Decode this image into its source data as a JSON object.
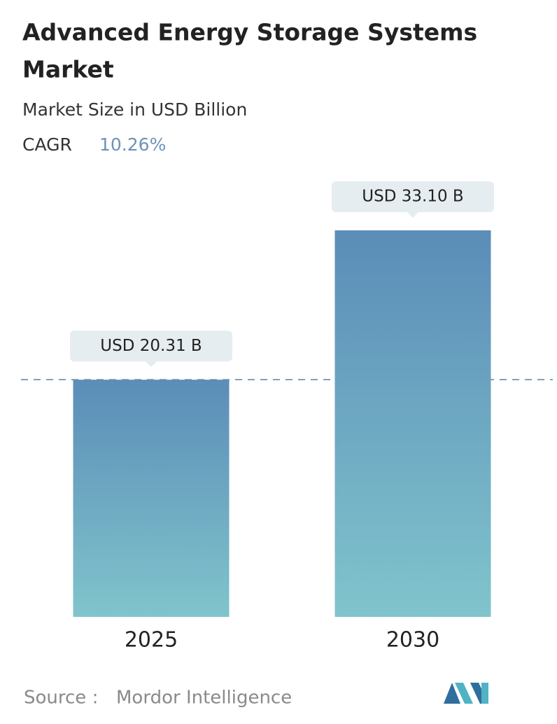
{
  "chart_data": {
    "type": "bar",
    "title_lines": [
      "Advanced Energy Storage Systems",
      "Market"
    ],
    "subtitle": "Market Size in USD Billion",
    "cagr_label": "CAGR",
    "cagr": "10.26%",
    "categories": [
      "2025",
      "2030"
    ],
    "values": [
      20.31,
      33.1
    ],
    "value_labels": [
      "USD 20.31 B",
      "USD 33.10 B"
    ],
    "colors": [
      "#5b8db8",
      "#80c4cc"
    ],
    "source_label": "Source :",
    "source": "Mordor Intelligence"
  }
}
